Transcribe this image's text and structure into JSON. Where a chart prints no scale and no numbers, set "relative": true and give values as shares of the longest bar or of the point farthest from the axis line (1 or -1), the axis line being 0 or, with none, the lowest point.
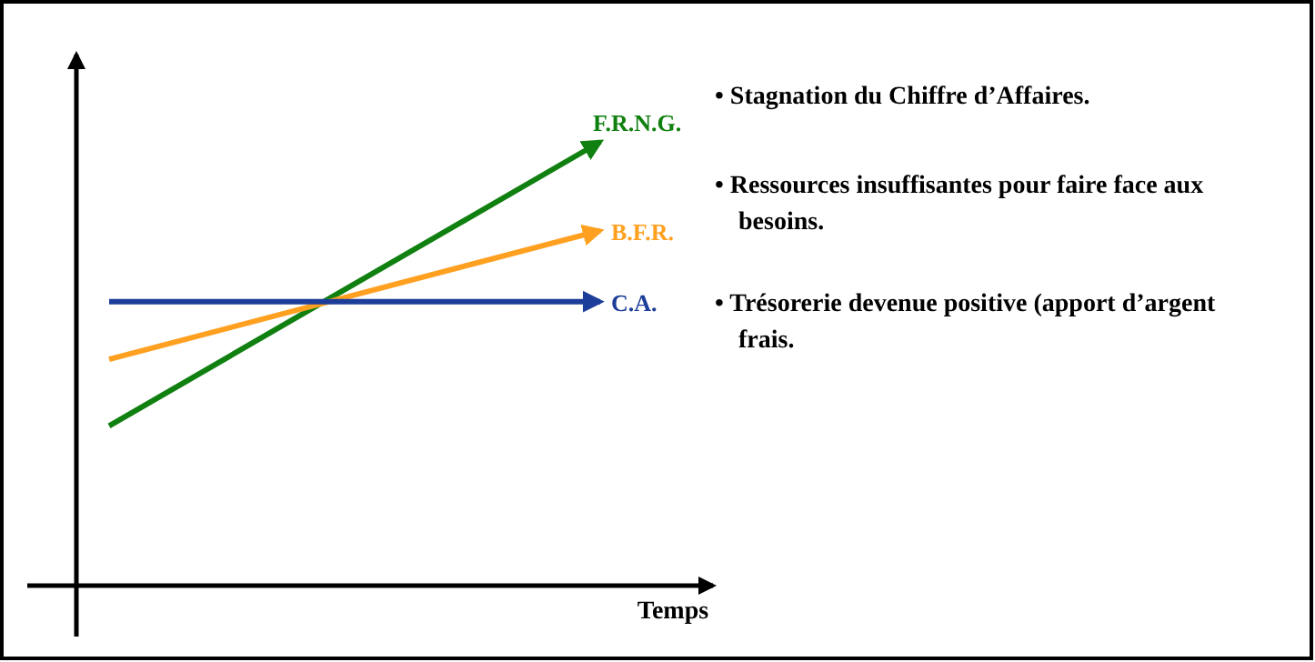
{
  "chart_data": {
    "type": "line",
    "relative": true,
    "xlabel": "Temps",
    "categories": [
      null,
      null
    ],
    "series": [
      {
        "name": "F.R.N.G.",
        "color": "#108010",
        "values": [
          0.36,
          1
        ]
      },
      {
        "name": "B.F.R.",
        "color": "#ffa020",
        "values": [
          0.51,
          0.8
        ]
      },
      {
        "name": "C.A.",
        "color": "#1c3e9a",
        "values": [
          0.64,
          0.64
        ]
      }
    ],
    "annotations": [
      "• Stagnation du Chiffre d’Affaires.",
      "• Ressources insuffisantes pour faire face aux besoins.",
      "• Trésorerie devenue positive (apport d’argent frais."
    ]
  }
}
